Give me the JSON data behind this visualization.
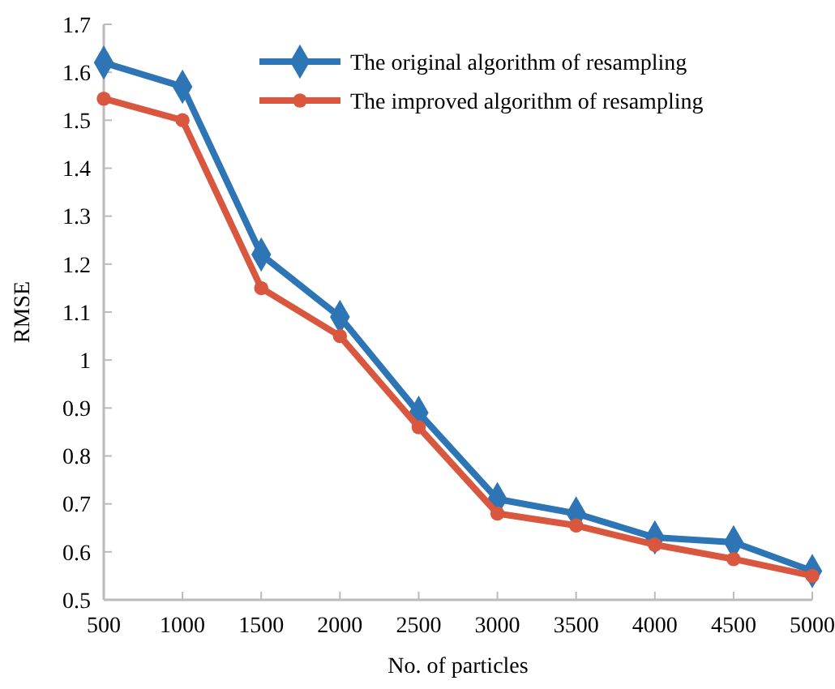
{
  "chart_data": {
    "type": "line",
    "xlabel": "No. of particles",
    "ylabel": "RMSE",
    "categories": [
      "500",
      "1000",
      "1500",
      "2000",
      "2500",
      "3000",
      "3500",
      "4000",
      "4500",
      "5000"
    ],
    "series": [
      {
        "name": "The original algorithm of resampling",
        "color": "#2e75b6",
        "marker": "diamond",
        "values": [
          1.62,
          1.57,
          1.22,
          1.09,
          0.89,
          0.71,
          0.68,
          0.63,
          0.62,
          0.56
        ]
      },
      {
        "name": "The improved algorithm of resampling",
        "color": "#d9573f",
        "marker": "circle",
        "values": [
          1.545,
          1.5,
          1.15,
          1.05,
          0.86,
          0.68,
          0.655,
          0.615,
          0.585,
          0.55
        ]
      }
    ],
    "ylim": [
      0.5,
      1.7
    ],
    "yticks": [
      {
        "value": 0.5,
        "label": "0.5"
      },
      {
        "value": 0.6,
        "label": "0.6"
      },
      {
        "value": 0.7,
        "label": "0.7"
      },
      {
        "value": 0.8,
        "label": "0.8"
      },
      {
        "value": 0.9,
        "label": "0.9"
      },
      1,
      {
        "value": 1.1,
        "label": "1.1"
      },
      {
        "value": 1.2,
        "label": "1.2"
      },
      {
        "value": 1.3,
        "label": "1.3"
      },
      {
        "value": 1.4,
        "label": "1.4"
      },
      {
        "value": 1.5,
        "label": "1.5"
      },
      {
        "value": 1.6,
        "label": "1.6"
      },
      {
        "value": 1.7,
        "label": "1.7"
      }
    ],
    "grid": false,
    "legend": "top right"
  }
}
